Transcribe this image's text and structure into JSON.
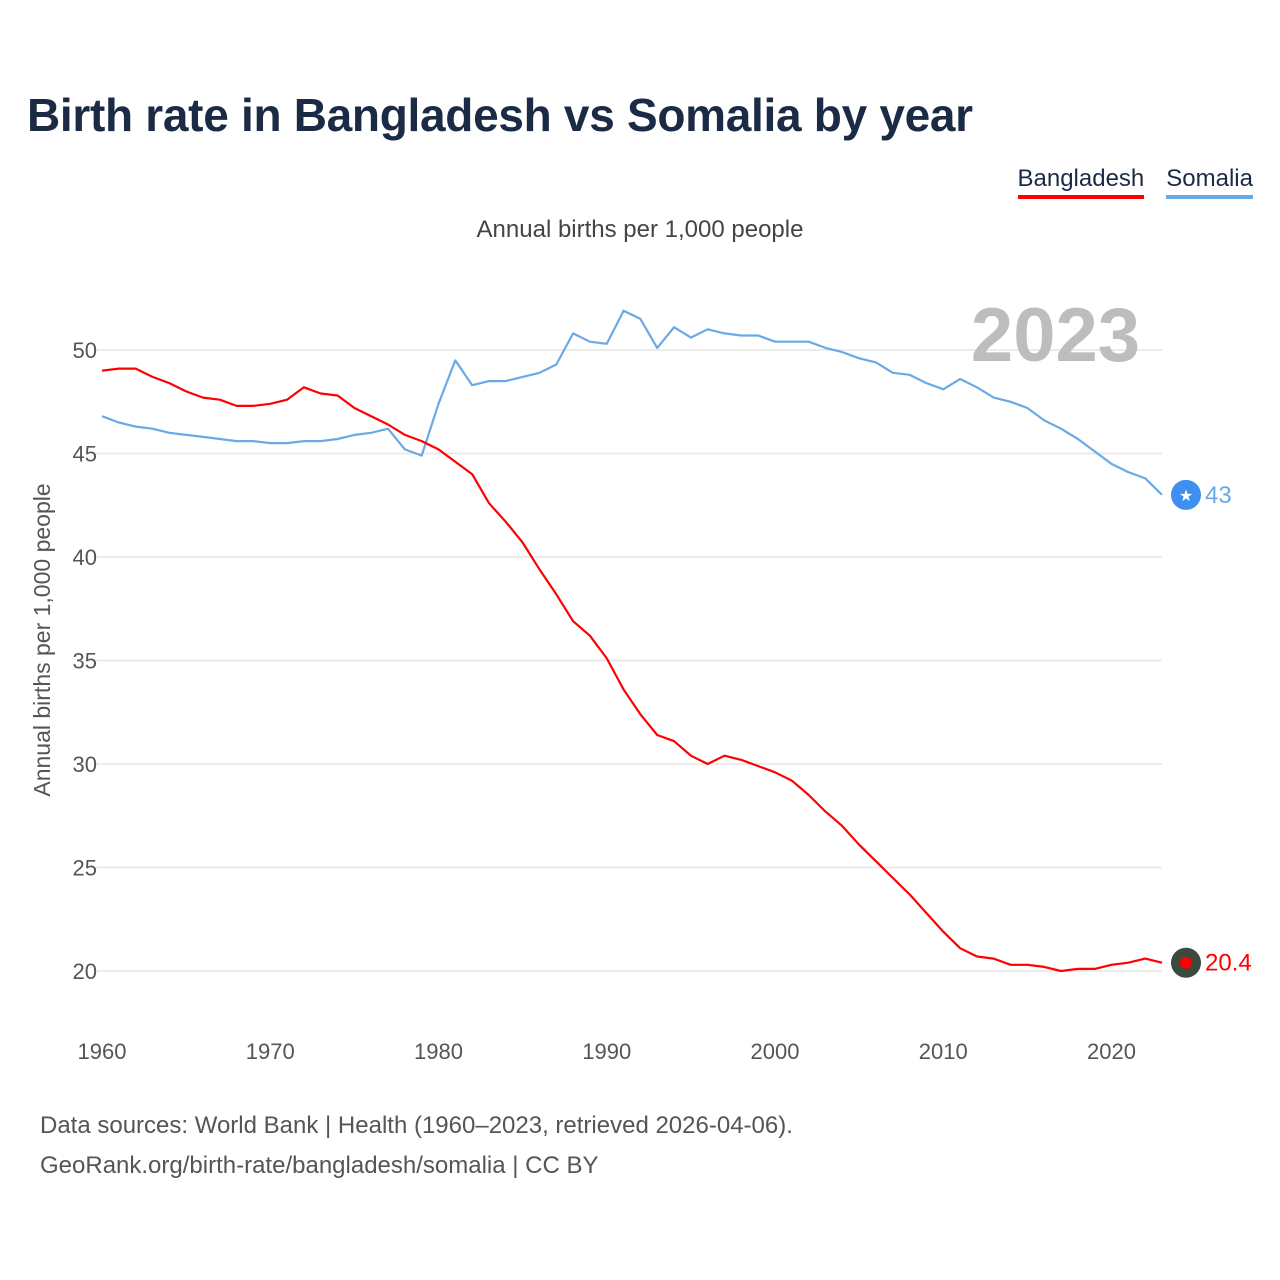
{
  "title": "Birth rate in Bangladesh vs Somalia by year",
  "legend": [
    {
      "label": "Bangladesh",
      "color": "#ff0000"
    },
    {
      "label": "Somalia",
      "color": "#6aa9e6"
    }
  ],
  "subtitle": "Annual births per 1,000 people",
  "current_year": "2023",
  "footer": {
    "line1": "Data sources: World Bank | Health (1960–2023, retrieved 2026-04-06).",
    "line2": "GeoRank.org/birth-rate/bangladesh/somalia | CC BY"
  },
  "chart_data": {
    "type": "line",
    "title": "Birth rate in Bangladesh vs Somalia by year",
    "ylabel": "Annual births per 1,000 people",
    "xlabel": "",
    "xlim": [
      1960,
      2023
    ],
    "ylim": [
      18,
      53
    ],
    "x_ticks": [
      1960,
      1970,
      1980,
      1990,
      2000,
      2010,
      2020
    ],
    "y_ticks": [
      20,
      25,
      30,
      35,
      40,
      45,
      50
    ],
    "x": [
      1960,
      1961,
      1962,
      1963,
      1964,
      1965,
      1966,
      1967,
      1968,
      1969,
      1970,
      1971,
      1972,
      1973,
      1974,
      1975,
      1976,
      1977,
      1978,
      1979,
      1980,
      1981,
      1982,
      1983,
      1984,
      1985,
      1986,
      1987,
      1988,
      1989,
      1990,
      1991,
      1992,
      1993,
      1994,
      1995,
      1996,
      1997,
      1998,
      1999,
      2000,
      2001,
      2002,
      2003,
      2004,
      2005,
      2006,
      2007,
      2008,
      2009,
      2010,
      2011,
      2012,
      2013,
      2014,
      2015,
      2016,
      2017,
      2018,
      2019,
      2020,
      2021,
      2022,
      2023
    ],
    "series": [
      {
        "name": "Bangladesh",
        "color": "#ff0000",
        "end_label": "20.4",
        "values": [
          49.0,
          49.1,
          49.1,
          48.7,
          48.4,
          48.0,
          47.7,
          47.6,
          47.3,
          47.3,
          47.4,
          47.6,
          48.2,
          47.9,
          47.8,
          47.2,
          46.8,
          46.4,
          45.9,
          45.6,
          45.2,
          44.6,
          44.0,
          42.6,
          41.7,
          40.7,
          39.4,
          38.2,
          36.9,
          36.2,
          35.1,
          33.6,
          32.4,
          31.4,
          31.1,
          30.4,
          30.0,
          30.4,
          30.2,
          29.9,
          29.6,
          29.2,
          28.5,
          27.7,
          27.0,
          26.1,
          25.3,
          24.5,
          23.7,
          22.8,
          21.9,
          21.1,
          20.7,
          20.6,
          20.3,
          20.3,
          20.2,
          20.0,
          20.1,
          20.1,
          20.3,
          20.4,
          20.6,
          20.4
        ]
      },
      {
        "name": "Somalia",
        "color": "#6aa9e6",
        "end_label": "43",
        "values": [
          46.8,
          46.5,
          46.3,
          46.2,
          46.0,
          45.9,
          45.8,
          45.7,
          45.6,
          45.6,
          45.5,
          45.5,
          45.6,
          45.6,
          45.7,
          45.9,
          46.0,
          46.2,
          45.2,
          44.9,
          47.4,
          49.5,
          48.3,
          48.5,
          48.5,
          48.7,
          48.9,
          49.3,
          50.8,
          50.4,
          50.3,
          51.9,
          51.5,
          50.1,
          51.1,
          50.6,
          51.0,
          50.8,
          50.7,
          50.7,
          50.4,
          50.4,
          50.4,
          50.1,
          49.9,
          49.6,
          49.4,
          48.9,
          48.8,
          48.4,
          48.1,
          48.6,
          48.2,
          47.7,
          47.5,
          47.2,
          46.6,
          46.2,
          45.7,
          45.1,
          44.5,
          44.1,
          43.8,
          43.0
        ]
      }
    ]
  }
}
